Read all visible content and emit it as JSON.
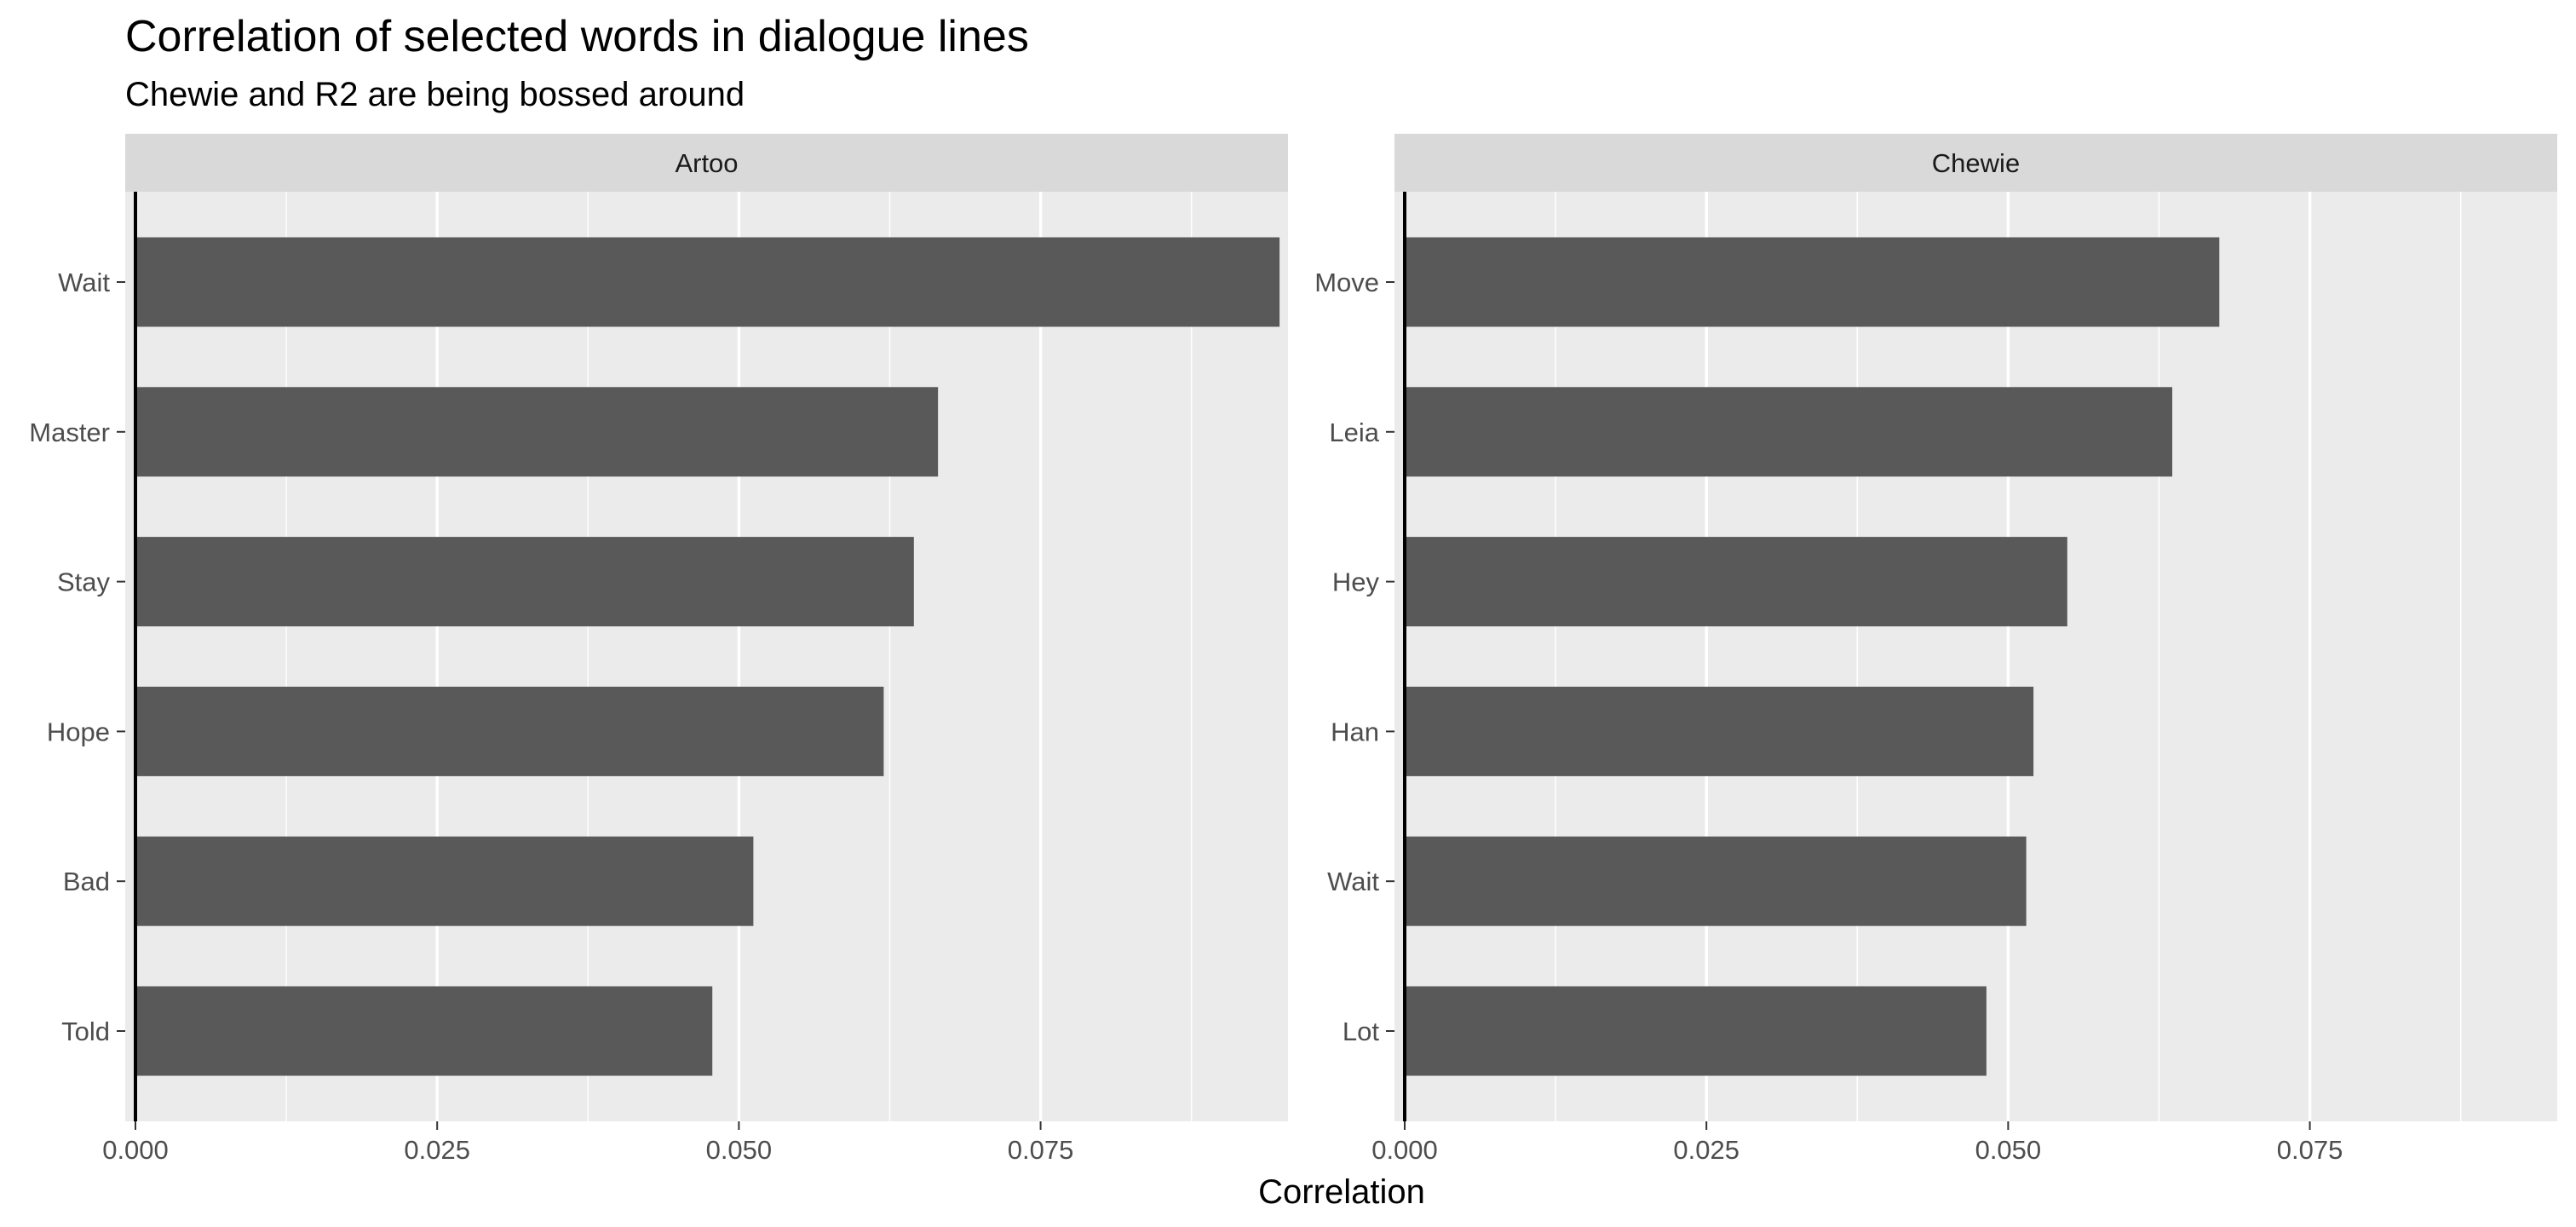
{
  "chart_data": {
    "type": "bar",
    "orientation": "horizontal",
    "title": "Correlation of selected words in dialogue lines",
    "subtitle": "Chewie and R2 are being bossed around",
    "xlabel": "Correlation",
    "ylabel": "",
    "xlim": [
      0,
      0.0955
    ],
    "xticks": [
      "0.000",
      "0.025",
      "0.050",
      "0.075"
    ],
    "grid": true,
    "panels": [
      {
        "name": "Artoo",
        "categories": [
          "Wait",
          "Master",
          "Stay",
          "Hope",
          "Bad",
          "Told"
        ],
        "values": [
          0.0948,
          0.0665,
          0.0645,
          0.062,
          0.0512,
          0.0478
        ]
      },
      {
        "name": "Chewie",
        "categories": [
          "Move",
          "Leia",
          "Hey",
          "Han",
          "Wait",
          "Lot"
        ],
        "values": [
          0.0675,
          0.0636,
          0.0549,
          0.0521,
          0.0515,
          0.0482
        ]
      }
    ],
    "colors": {
      "bar": "#595959",
      "panel_background": "#EBEBEB",
      "strip_background": "#D9D9D9",
      "grid": "#FFFFFF"
    }
  }
}
